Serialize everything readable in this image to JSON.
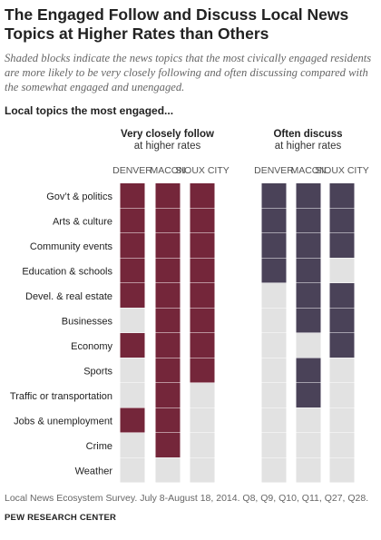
{
  "title": "The Engaged Follow and Discuss Local News Topics at Higher Rates than Others",
  "subtitle": "Shaded blocks indicate the news topics that the most civically engaged residents are more likely to be very closely following and often discussing compared with the somewhat engaged and unengaged.",
  "section_label": "Local topics the most engaged...",
  "note": "Local News Ecosystem Survey. July 8-August 18, 2014. Q8, Q9, Q10, Q11, Q27, Q28.",
  "source": "PEW RESEARCH CENTER",
  "colors": {
    "follow": "#74263a",
    "discuss": "#4a4258",
    "empty": "#e2e2e2"
  },
  "chart_data": {
    "type": "table",
    "topics": [
      "Gov’t & politics",
      "Arts & culture",
      "Community events",
      "Education & schools",
      "Devel. & real estate",
      "Businesses",
      "Economy",
      "Sports",
      "Traffic or transportation",
      "Jobs & unemployment",
      "Crime",
      "Weather"
    ],
    "cities": [
      "DENVER",
      "MACON",
      "SIOUX CITY"
    ],
    "groups": [
      {
        "title": "Very closely follow",
        "subtitle": "at higher rates",
        "shaded": [
          [
            1,
            1,
            1,
            1,
            1,
            0,
            1,
            0,
            0,
            1,
            0,
            0
          ],
          [
            1,
            1,
            1,
            1,
            1,
            1,
            1,
            1,
            1,
            1,
            1,
            0
          ],
          [
            1,
            1,
            1,
            1,
            1,
            1,
            1,
            1,
            0,
            0,
            0,
            0
          ]
        ]
      },
      {
        "title": "Often discuss",
        "subtitle": "at higher rates",
        "shaded": [
          [
            1,
            1,
            1,
            1,
            0,
            0,
            0,
            0,
            0,
            0,
            0,
            0
          ],
          [
            1,
            1,
            1,
            1,
            1,
            1,
            0,
            1,
            1,
            0,
            0,
            0
          ],
          [
            1,
            1,
            1,
            0,
            1,
            1,
            1,
            0,
            0,
            0,
            0,
            0
          ]
        ]
      }
    ]
  }
}
